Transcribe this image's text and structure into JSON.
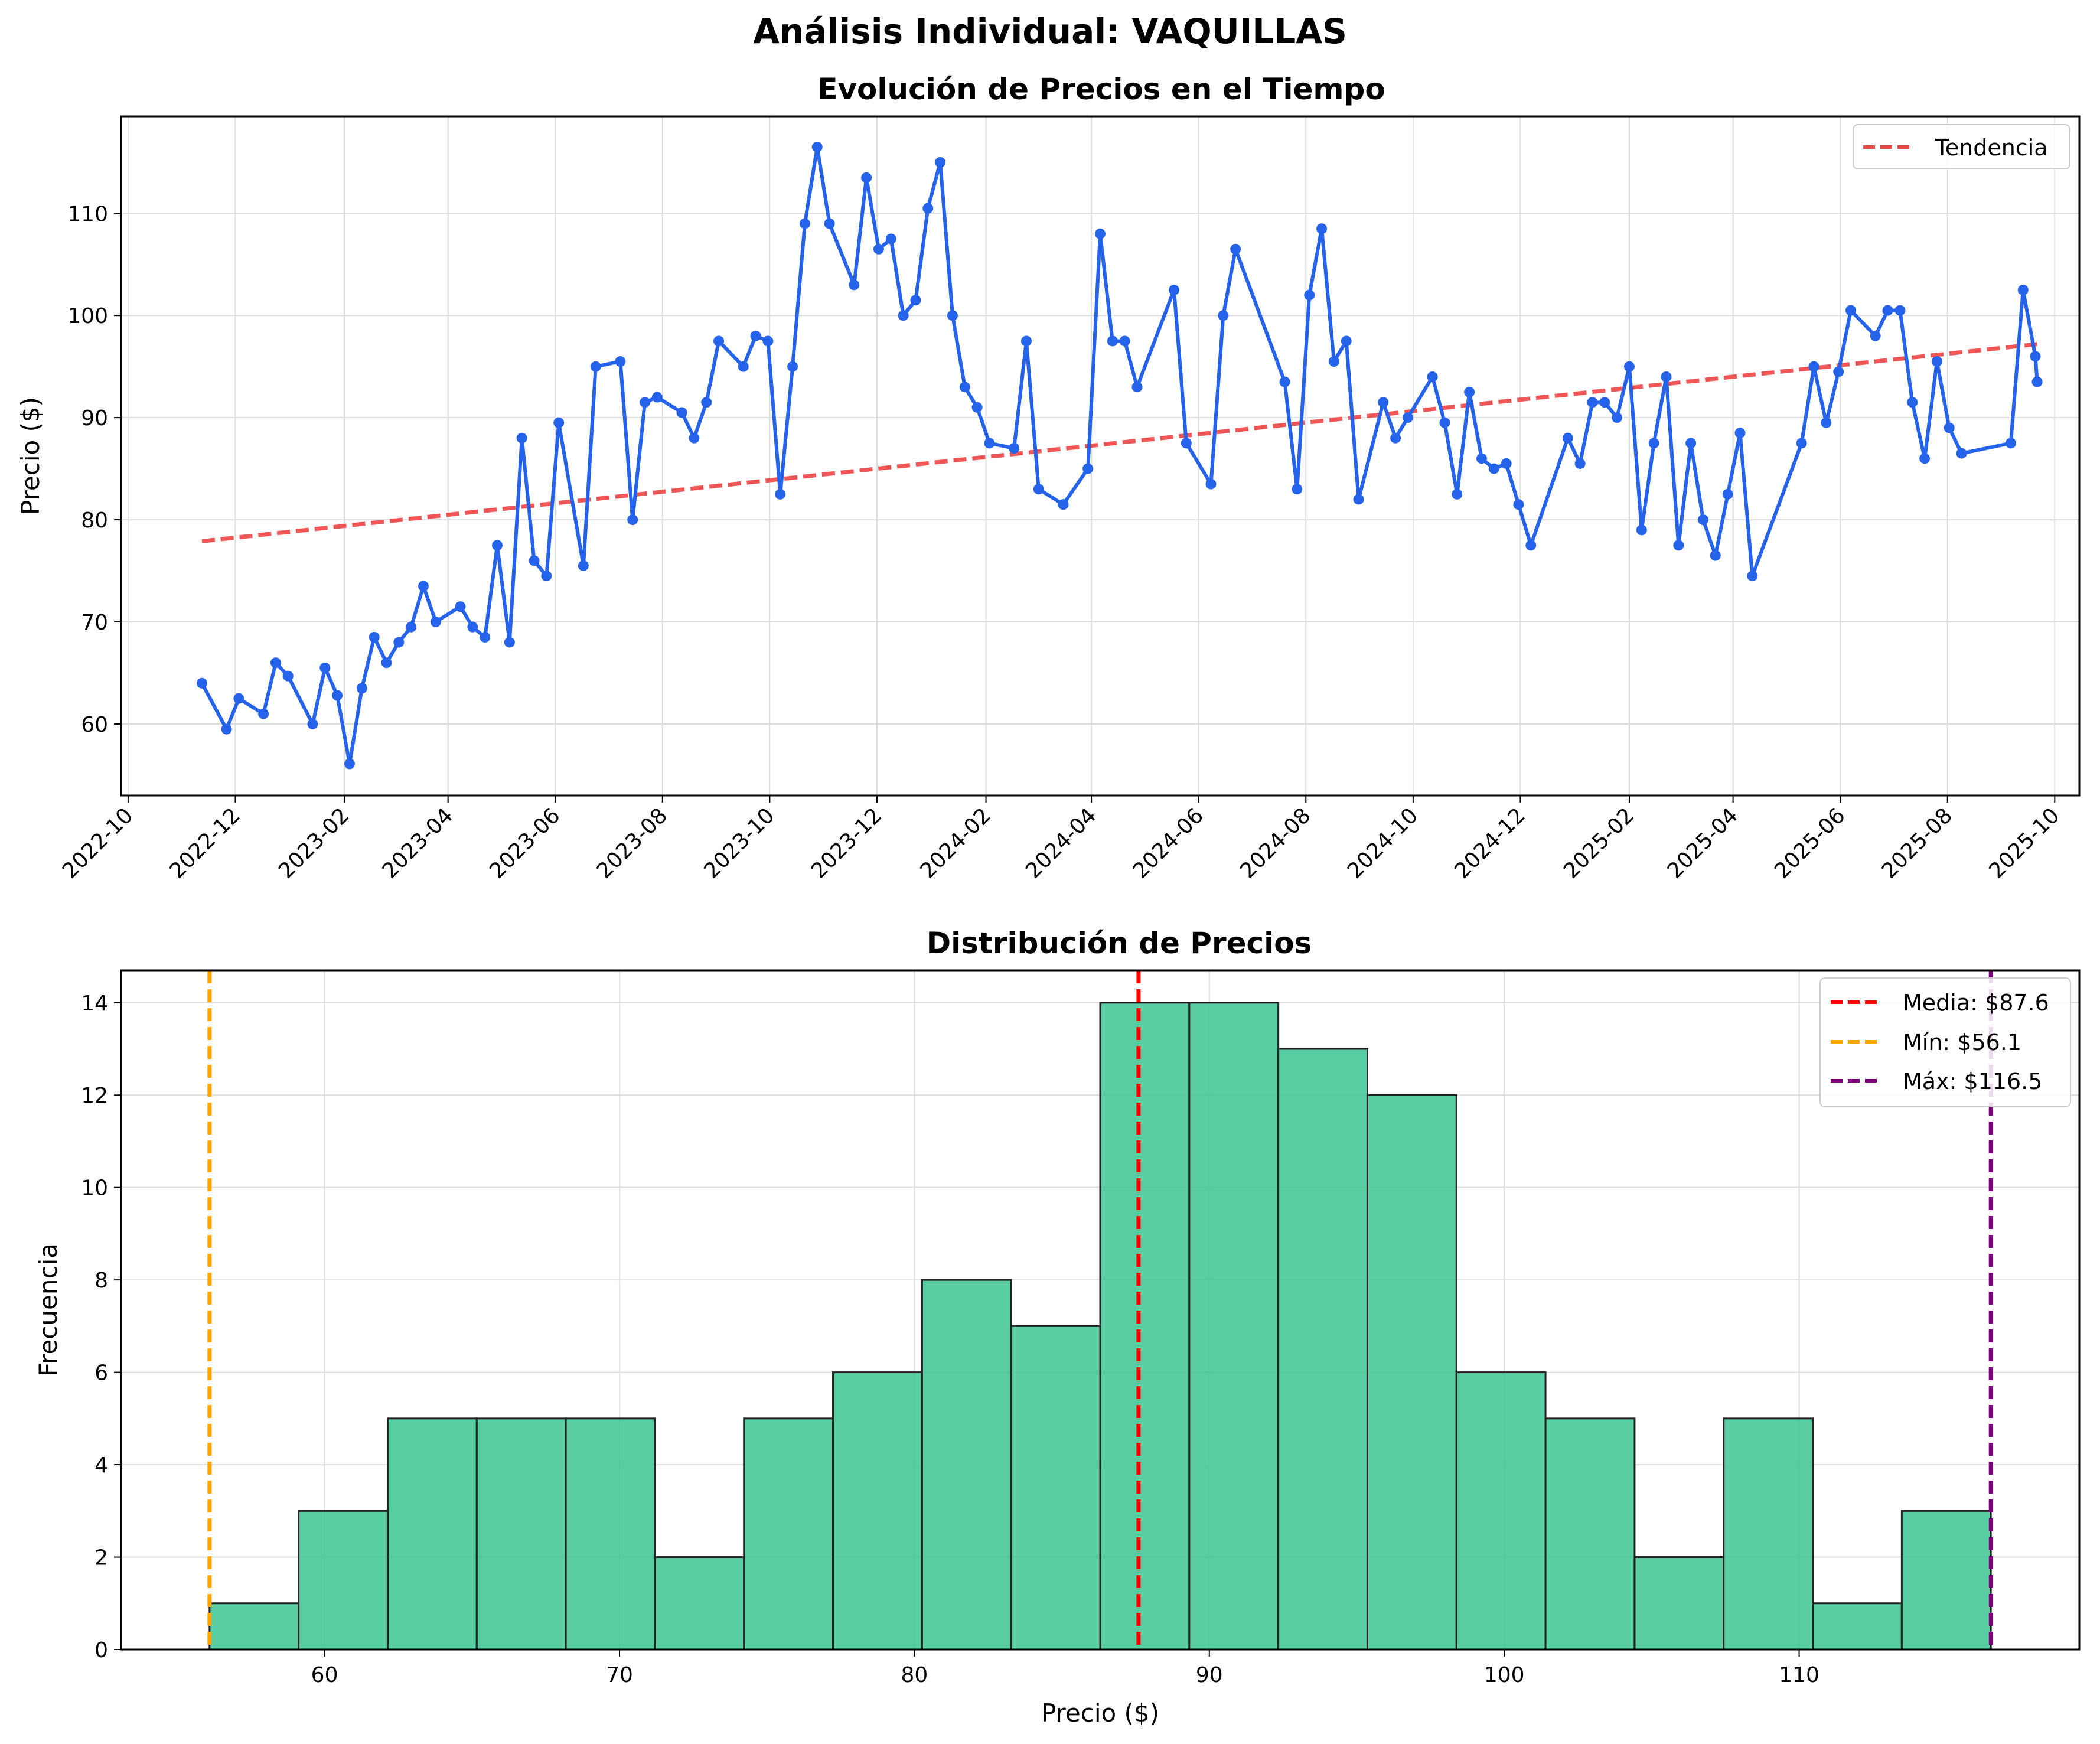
{
  "suptitle": "Análisis Individual: VAQUILLAS",
  "colors": {
    "line": "#2563eb",
    "trend": "#ef4444",
    "bars": "#34c38f",
    "bar_edge": "#222222",
    "mean": "#ff0000",
    "min": "#ffa500",
    "max": "#800080",
    "grid": "#dddddd"
  },
  "chart_data": [
    {
      "type": "line",
      "title": "Evolución de Precios en el Tiempo",
      "xlabel": "",
      "ylabel": "Precio ($)",
      "ylim": [
        53,
        119.5
      ],
      "yticks": [
        60,
        70,
        80,
        90,
        100,
        110
      ],
      "xlim": [
        "2022-09-27",
        "2025-10-15"
      ],
      "xticks": [
        "2022-10",
        "2022-12",
        "2023-02",
        "2023-04",
        "2023-06",
        "2023-08",
        "2023-10",
        "2023-12",
        "2024-02",
        "2024-04",
        "2024-06",
        "2024-08",
        "2024-10",
        "2024-12",
        "2025-02",
        "2025-04",
        "2025-06",
        "2025-08",
        "2025-10"
      ],
      "grid": true,
      "legend": {
        "position": "top-right",
        "entries": [
          "Tendencia"
        ]
      },
      "series": [
        {
          "name": "Precio",
          "points": [
            [
              "2022-11-12",
              64.0
            ],
            [
              "2022-11-26",
              59.5
            ],
            [
              "2022-12-03",
              62.5
            ],
            [
              "2022-12-17",
              61.0
            ],
            [
              "2022-12-24",
              66.0
            ],
            [
              "2022-12-31",
              64.7
            ],
            [
              "2023-01-14",
              60.0
            ],
            [
              "2023-01-21",
              65.5
            ],
            [
              "2023-01-28",
              62.8
            ],
            [
              "2023-02-04",
              56.1
            ],
            [
              "2023-02-11",
              63.5
            ],
            [
              "2023-02-18",
              68.5
            ],
            [
              "2023-02-25",
              66.0
            ],
            [
              "2023-03-04",
              68.0
            ],
            [
              "2023-03-11",
              69.5
            ],
            [
              "2023-03-18",
              73.5
            ],
            [
              "2023-03-25",
              70.0
            ],
            [
              "2023-04-08",
              71.5
            ],
            [
              "2023-04-15",
              69.5
            ],
            [
              "2023-04-22",
              68.5
            ],
            [
              "2023-04-29",
              77.5
            ],
            [
              "2023-05-06",
              68.0
            ],
            [
              "2023-05-13",
              88.0
            ],
            [
              "2023-05-20",
              76.0
            ],
            [
              "2023-05-27",
              74.5
            ],
            [
              "2023-06-03",
              89.5
            ],
            [
              "2023-06-17",
              75.5
            ],
            [
              "2023-06-24",
              95.0
            ],
            [
              "2023-07-08",
              95.5
            ],
            [
              "2023-07-15",
              80.0
            ],
            [
              "2023-07-22",
              91.5
            ],
            [
              "2023-07-29",
              92.0
            ],
            [
              "2023-08-12",
              90.5
            ],
            [
              "2023-08-19",
              88.0
            ],
            [
              "2023-08-26",
              91.5
            ],
            [
              "2023-09-02",
              97.5
            ],
            [
              "2023-09-16",
              95.0
            ],
            [
              "2023-09-23",
              98.0
            ],
            [
              "2023-09-30",
              97.5
            ],
            [
              "2023-10-07",
              82.5
            ],
            [
              "2023-10-14",
              95.0
            ],
            [
              "2023-10-21",
              109.0
            ],
            [
              "2023-10-28",
              116.5
            ],
            [
              "2023-11-04",
              109.0
            ],
            [
              "2023-11-18",
              103.0
            ],
            [
              "2023-11-25",
              113.5
            ],
            [
              "2023-12-02",
              106.5
            ],
            [
              "2023-12-09",
              107.5
            ],
            [
              "2023-12-16",
              100.0
            ],
            [
              "2023-12-23",
              101.5
            ],
            [
              "2023-12-30",
              110.5
            ],
            [
              "2024-01-06",
              115.0
            ],
            [
              "2024-01-13",
              100.0
            ],
            [
              "2024-01-20",
              93.0
            ],
            [
              "2024-01-27",
              91.0
            ],
            [
              "2024-02-03",
              87.5
            ],
            [
              "2024-02-17",
              87.0
            ],
            [
              "2024-02-24",
              97.5
            ],
            [
              "2024-03-02",
              83.0
            ],
            [
              "2024-03-16",
              81.5
            ],
            [
              "2024-03-30",
              85.0
            ],
            [
              "2024-04-06",
              108.0
            ],
            [
              "2024-04-13",
              97.5
            ],
            [
              "2024-04-20",
              97.5
            ],
            [
              "2024-04-27",
              93.0
            ],
            [
              "2024-05-18",
              102.5
            ],
            [
              "2024-05-25",
              87.5
            ],
            [
              "2024-06-08",
              83.5
            ],
            [
              "2024-06-15",
              100.0
            ],
            [
              "2024-06-22",
              106.5
            ],
            [
              "2024-07-20",
              93.5
            ],
            [
              "2024-07-27",
              83.0
            ],
            [
              "2024-08-03",
              102.0
            ],
            [
              "2024-08-10",
              108.5
            ],
            [
              "2024-08-17",
              95.5
            ],
            [
              "2024-08-24",
              97.5
            ],
            [
              "2024-08-31",
              82.0
            ],
            [
              "2024-09-14",
              91.5
            ],
            [
              "2024-09-21",
              88.0
            ],
            [
              "2024-09-28",
              90.0
            ],
            [
              "2024-10-12",
              94.0
            ],
            [
              "2024-10-19",
              89.5
            ],
            [
              "2024-10-26",
              82.5
            ],
            [
              "2024-11-02",
              92.5
            ],
            [
              "2024-11-09",
              86.0
            ],
            [
              "2024-11-16",
              85.0
            ],
            [
              "2024-11-23",
              85.5
            ],
            [
              "2024-11-30",
              81.5
            ],
            [
              "2024-12-07",
              77.5
            ],
            [
              "2024-12-28",
              88.0
            ],
            [
              "2025-01-04",
              85.5
            ],
            [
              "2025-01-11",
              91.5
            ],
            [
              "2025-01-18",
              91.5
            ],
            [
              "2025-01-25",
              90.0
            ],
            [
              "2025-02-01",
              95.0
            ],
            [
              "2025-02-08",
              79.0
            ],
            [
              "2025-02-15",
              87.5
            ],
            [
              "2025-02-22",
              94.0
            ],
            [
              "2025-03-01",
              77.5
            ],
            [
              "2025-03-08",
              87.5
            ],
            [
              "2025-03-15",
              80.0
            ],
            [
              "2025-03-22",
              76.5
            ],
            [
              "2025-03-29",
              82.5
            ],
            [
              "2025-04-05",
              88.5
            ],
            [
              "2025-04-12",
              74.5
            ],
            [
              "2025-05-10",
              87.5
            ],
            [
              "2025-05-17",
              95.0
            ],
            [
              "2025-05-24",
              89.5
            ],
            [
              "2025-05-31",
              94.5
            ],
            [
              "2025-06-07",
              100.5
            ],
            [
              "2025-06-21",
              98.0
            ],
            [
              "2025-06-28",
              100.5
            ],
            [
              "2025-07-05",
              100.5
            ],
            [
              "2025-07-12",
              91.5
            ],
            [
              "2025-07-19",
              86.0
            ],
            [
              "2025-07-26",
              95.5
            ],
            [
              "2025-08-02",
              89.0
            ],
            [
              "2025-08-09",
              86.5
            ],
            [
              "2025-09-06",
              87.5
            ],
            [
              "2025-09-13",
              102.5
            ],
            [
              "2025-09-20",
              96.0
            ],
            [
              "2025-09-21",
              93.5
            ]
          ]
        },
        {
          "name": "Tendencia",
          "style": "dashed",
          "points": [
            [
              "2022-11-12",
              77.9
            ],
            [
              "2025-09-21",
              97.2
            ]
          ]
        }
      ]
    },
    {
      "type": "bar",
      "title": "Distribución de Precios",
      "xlabel": "Precio ($)",
      "ylabel": "Frecuencia",
      "xlim": [
        53.1,
        119.5
      ],
      "ylim": [
        0,
        14.7
      ],
      "xticks": [
        60,
        70,
        80,
        90,
        100,
        110
      ],
      "yticks": [
        0,
        2,
        4,
        6,
        8,
        10,
        12,
        14
      ],
      "grid": true,
      "bin_edges": [
        56.1,
        59.12,
        62.14,
        65.16,
        68.18,
        71.2,
        74.22,
        77.24,
        80.26,
        83.28,
        86.3,
        89.32,
        92.34,
        95.36,
        98.38,
        101.4,
        104.42,
        107.44,
        110.46,
        113.48,
        116.5
      ],
      "values": [
        1,
        3,
        5,
        5,
        5,
        2,
        5,
        6,
        8,
        7,
        14,
        14,
        13,
        12,
        6,
        5,
        2,
        5,
        1,
        3
      ],
      "vlines": [
        {
          "label": "Media: $87.6",
          "x": 87.6,
          "color": "#ff0000"
        },
        {
          "label": "Mín: $56.1",
          "x": 56.1,
          "color": "#ffa500"
        },
        {
          "label": "Máx: $116.5",
          "x": 116.5,
          "color": "#800080"
        }
      ],
      "legend": {
        "position": "top-right",
        "entries": [
          "Media: $87.6",
          "Mín: $56.1",
          "Máx: $116.5"
        ]
      }
    }
  ]
}
